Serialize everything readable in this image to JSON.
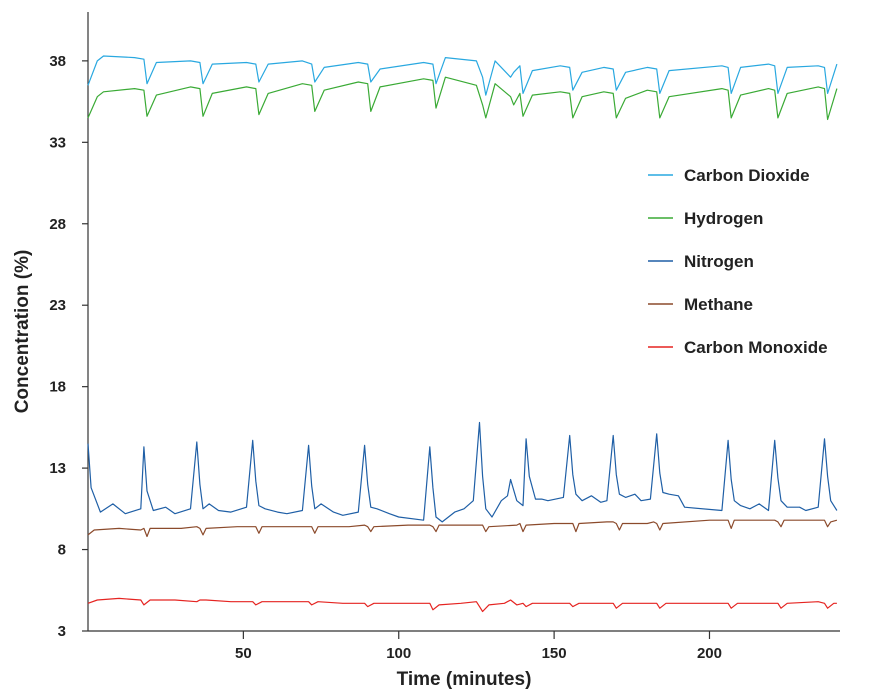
{
  "chart_data": {
    "type": "line",
    "title": "",
    "xlabel": "Time (minutes)",
    "ylabel": "Concentration (%)",
    "xlim": [
      0,
      242
    ],
    "ylim": [
      3,
      41
    ],
    "xticks": [
      50,
      100,
      150,
      200
    ],
    "yticks": [
      3,
      8,
      13,
      18,
      23,
      28,
      33,
      38
    ],
    "grid": false,
    "legend_position": "right",
    "series": [
      {
        "name": "Carbon Dioxide",
        "color": "#29a8e0",
        "x": [
          0,
          3,
          5,
          15,
          18,
          19,
          22,
          33,
          36,
          37,
          40,
          51,
          54,
          55,
          58,
          69,
          72,
          73,
          76,
          87,
          90,
          91,
          94,
          108,
          111,
          112,
          115,
          125,
          127,
          128,
          131,
          136,
          137,
          139,
          140,
          143,
          152,
          155,
          156,
          159,
          166,
          169,
          170,
          173,
          180,
          183,
          184,
          187,
          204,
          206,
          207,
          210,
          219,
          221,
          222,
          225,
          235,
          237,
          238,
          241
        ],
        "values": [
          36.5,
          38.0,
          38.3,
          38.2,
          38.1,
          36.6,
          37.9,
          38.0,
          37.9,
          36.6,
          37.8,
          37.9,
          37.8,
          36.7,
          37.8,
          38.0,
          37.8,
          36.7,
          37.6,
          37.9,
          37.8,
          36.7,
          37.5,
          37.9,
          37.8,
          36.6,
          38.2,
          38.0,
          37.0,
          35.9,
          38.0,
          37.0,
          37.3,
          37.7,
          36.0,
          37.4,
          37.7,
          37.6,
          36.2,
          37.3,
          37.6,
          37.5,
          36.2,
          37.3,
          37.6,
          37.5,
          36.0,
          37.4,
          37.7,
          37.6,
          36.0,
          37.6,
          37.8,
          37.7,
          36.0,
          37.6,
          37.7,
          37.6,
          36.0,
          37.8
        ]
      },
      {
        "name": "Hydrogen",
        "color": "#3aaa35",
        "x": [
          0,
          3,
          5,
          15,
          18,
          19,
          22,
          33,
          36,
          37,
          40,
          51,
          54,
          55,
          58,
          69,
          72,
          73,
          76,
          87,
          90,
          91,
          94,
          108,
          111,
          112,
          115,
          125,
          127,
          128,
          131,
          136,
          137,
          139,
          140,
          143,
          152,
          155,
          156,
          159,
          166,
          169,
          170,
          173,
          180,
          183,
          184,
          187,
          204,
          206,
          207,
          210,
          219,
          221,
          222,
          225,
          235,
          237,
          238,
          241
        ],
        "values": [
          34.5,
          35.8,
          36.1,
          36.3,
          36.2,
          34.6,
          35.9,
          36.4,
          36.3,
          34.6,
          36.0,
          36.4,
          36.3,
          34.7,
          36.0,
          36.6,
          36.5,
          34.9,
          36.2,
          36.7,
          36.6,
          34.9,
          36.4,
          36.9,
          36.8,
          35.1,
          37.0,
          36.5,
          35.3,
          34.5,
          36.6,
          35.8,
          35.3,
          36.0,
          34.6,
          35.9,
          36.1,
          36.0,
          34.5,
          35.8,
          36.1,
          36.0,
          34.5,
          35.7,
          36.2,
          36.1,
          34.5,
          35.8,
          36.3,
          36.2,
          34.5,
          35.9,
          36.3,
          36.2,
          34.5,
          36.0,
          36.4,
          36.3,
          34.4,
          36.3
        ]
      },
      {
        "name": "Nitrogen",
        "color": "#1f5fa6",
        "x": [
          0,
          1,
          4,
          8,
          12,
          17,
          18,
          19,
          21,
          25,
          28,
          33,
          35,
          36,
          37,
          39,
          42,
          46,
          51,
          53,
          54,
          55,
          57,
          61,
          64,
          69,
          71,
          72,
          73,
          75,
          79,
          82,
          87,
          89,
          90,
          91,
          93,
          97,
          100,
          108,
          110,
          111,
          112,
          114,
          118,
          121,
          124,
          126,
          127,
          128,
          130,
          133,
          135,
          136,
          138,
          140,
          141,
          142,
          144,
          146,
          148,
          153,
          155,
          156,
          157,
          159,
          162,
          165,
          167,
          169,
          170,
          171,
          173,
          176,
          178,
          181,
          183,
          184,
          185,
          187,
          190,
          192,
          204,
          206,
          207,
          208,
          210,
          213,
          216,
          219,
          221,
          222,
          223,
          225,
          229,
          231,
          235,
          237,
          238,
          239,
          241
        ],
        "values": [
          14.5,
          11.8,
          10.3,
          10.8,
          10.2,
          10.5,
          14.3,
          11.6,
          10.4,
          10.6,
          10.2,
          10.5,
          14.6,
          12.0,
          10.5,
          10.8,
          10.4,
          10.3,
          10.6,
          14.7,
          12.2,
          10.7,
          10.5,
          10.3,
          10.2,
          10.4,
          14.4,
          11.9,
          10.5,
          10.8,
          10.3,
          10.1,
          10.3,
          14.4,
          12.0,
          10.6,
          10.5,
          10.2,
          10.0,
          9.8,
          14.3,
          11.8,
          10.0,
          9.7,
          10.3,
          10.5,
          11.0,
          15.8,
          12.5,
          10.5,
          10.0,
          11.0,
          11.3,
          12.3,
          11.0,
          10.7,
          14.8,
          12.5,
          11.1,
          11.1,
          11.0,
          11.2,
          15.0,
          12.6,
          11.4,
          11.0,
          11.3,
          10.9,
          11.0,
          15.0,
          12.6,
          11.4,
          11.2,
          11.4,
          11.0,
          11.1,
          15.1,
          12.7,
          11.5,
          11.4,
          11.3,
          10.6,
          10.4,
          14.7,
          12.3,
          11.0,
          10.7,
          10.5,
          10.8,
          10.4,
          14.7,
          12.4,
          11.0,
          10.6,
          10.6,
          10.4,
          10.6,
          14.8,
          12.5,
          11.0,
          10.4
        ]
      },
      {
        "name": "Methane",
        "color": "#8b4a2b",
        "x": [
          0,
          2,
          10,
          17,
          18,
          19,
          20,
          30,
          35,
          36,
          37,
          38,
          48,
          53,
          54,
          55,
          56,
          66,
          71,
          72,
          73,
          74,
          84,
          89,
          90,
          91,
          92,
          103,
          110,
          111,
          112,
          113,
          122,
          126,
          127,
          128,
          129,
          138,
          139,
          140,
          141,
          150,
          155,
          156,
          157,
          158,
          167,
          169,
          170,
          171,
          172,
          180,
          182,
          183,
          184,
          185,
          200,
          205,
          206,
          207,
          208,
          219,
          221,
          222,
          223,
          224,
          233,
          236,
          237,
          238,
          239,
          241
        ],
        "values": [
          8.9,
          9.2,
          9.3,
          9.2,
          9.3,
          8.8,
          9.3,
          9.3,
          9.4,
          9.3,
          8.9,
          9.3,
          9.4,
          9.4,
          9.4,
          9.0,
          9.4,
          9.4,
          9.4,
          9.4,
          9.0,
          9.4,
          9.4,
          9.5,
          9.4,
          9.1,
          9.4,
          9.5,
          9.5,
          9.4,
          9.1,
          9.5,
          9.5,
          9.5,
          9.5,
          9.1,
          9.4,
          9.5,
          9.6,
          9.1,
          9.5,
          9.6,
          9.6,
          9.6,
          9.1,
          9.6,
          9.7,
          9.7,
          9.6,
          9.2,
          9.6,
          9.6,
          9.7,
          9.6,
          9.2,
          9.6,
          9.8,
          9.8,
          9.8,
          9.3,
          9.8,
          9.8,
          9.8,
          9.7,
          9.4,
          9.8,
          9.8,
          9.8,
          9.8,
          9.4,
          9.7,
          9.8
        ]
      },
      {
        "name": "Carbon Monoxide",
        "color": "#e52421",
        "x": [
          0,
          3,
          10,
          17,
          18,
          20,
          28,
          35,
          36,
          38,
          46,
          53,
          54,
          56,
          64,
          71,
          72,
          74,
          82,
          89,
          90,
          92,
          100,
          108,
          110,
          111,
          113,
          120,
          125,
          126,
          127,
          129,
          134,
          136,
          138,
          140,
          141,
          143,
          150,
          155,
          156,
          158,
          165,
          169,
          170,
          172,
          180,
          183,
          184,
          186,
          196,
          206,
          207,
          209,
          219,
          222,
          223,
          225,
          235,
          237,
          238,
          240,
          241
        ],
        "values": [
          4.7,
          4.9,
          5.0,
          4.9,
          4.6,
          4.9,
          4.9,
          4.8,
          4.9,
          4.9,
          4.8,
          4.8,
          4.6,
          4.8,
          4.8,
          4.8,
          4.6,
          4.8,
          4.7,
          4.7,
          4.5,
          4.7,
          4.7,
          4.7,
          4.7,
          4.3,
          4.6,
          4.7,
          4.8,
          4.5,
          4.2,
          4.6,
          4.7,
          4.9,
          4.6,
          4.7,
          4.5,
          4.7,
          4.7,
          4.7,
          4.5,
          4.7,
          4.7,
          4.7,
          4.4,
          4.7,
          4.7,
          4.7,
          4.4,
          4.7,
          4.7,
          4.7,
          4.4,
          4.7,
          4.7,
          4.7,
          4.4,
          4.7,
          4.8,
          4.7,
          4.4,
          4.7,
          4.7
        ]
      }
    ]
  }
}
